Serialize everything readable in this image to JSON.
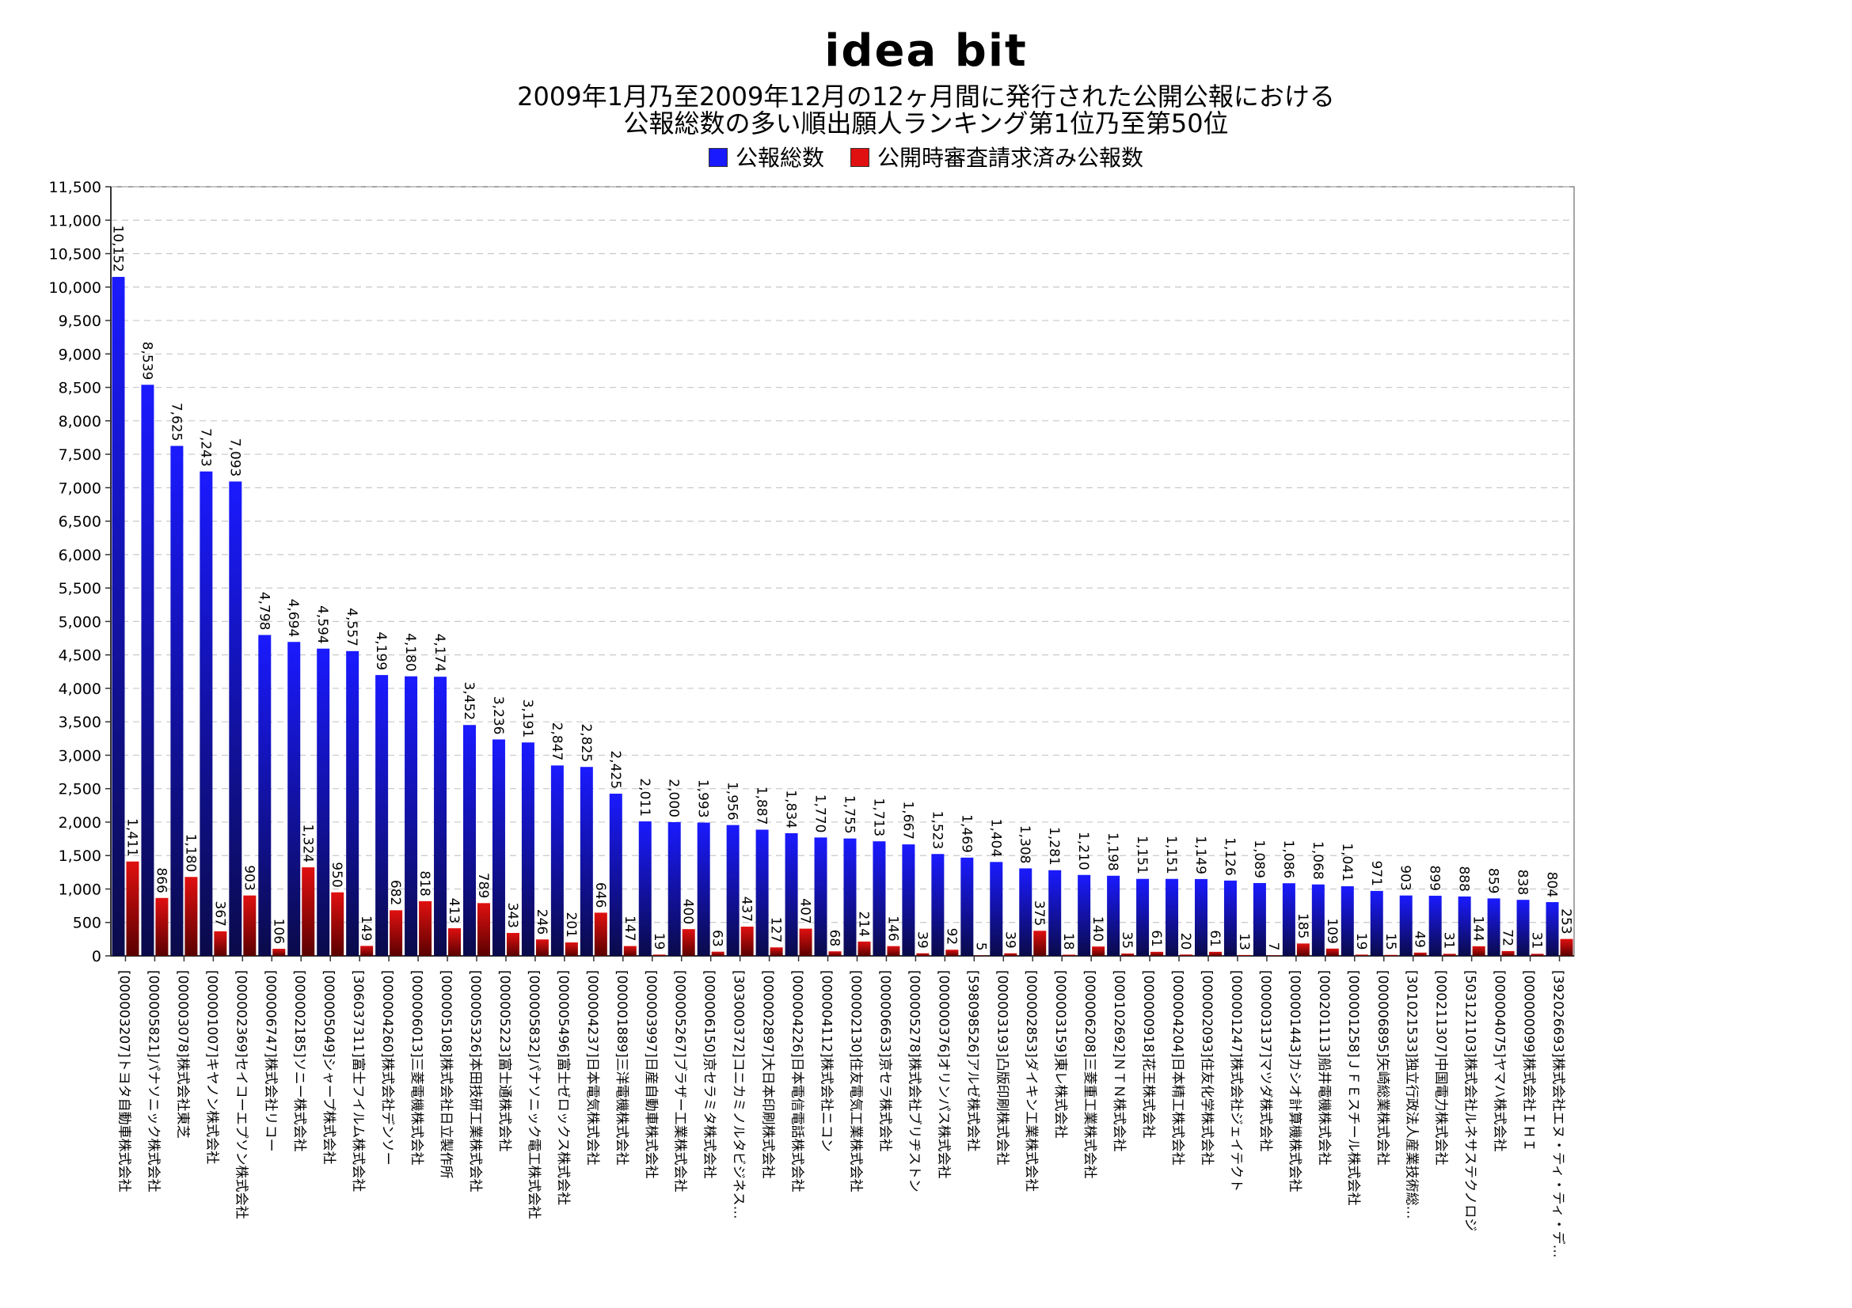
{
  "header": {
    "logo": "idea bit",
    "title_line1": "2009年1月乃至2009年12月の12ヶ月間に発行された公開公報における",
    "title_line2": "公報総数の多い順出願人ランキング第1位乃至第50位"
  },
  "colors": {
    "series1_top": "#1a1aff",
    "series1_bottom": "#0a0a4a",
    "series2_top": "#e01010",
    "series2_bottom": "#5a0000",
    "gridline": "#c8c8c8",
    "axis": "#333333"
  },
  "chart_data": {
    "type": "bar",
    "title": "2009年1月乃至2009年12月の12ヶ月間に発行された公開公報における 公報総数の多い順出願人ランキング第1位乃至第50位",
    "legend_position": "top",
    "grid": true,
    "ylim": [
      0,
      11500
    ],
    "y_ticks": [
      "0",
      "500",
      "1,000",
      "1,500",
      "2,000",
      "2,500",
      "3,000",
      "3,500",
      "4,000",
      "4,500",
      "5,000",
      "5,500",
      "6,000",
      "6,500",
      "7,000",
      "7,500",
      "8,000",
      "8,500",
      "9,000",
      "9,500",
      "10,000",
      "10,500",
      "11,000",
      "11,500"
    ],
    "categories": [
      "[000003207]トヨタ自動車株式会社",
      "[000005821]パナソニック株式会社",
      "[000003078]株式会社東芝",
      "[000001007]キヤノン株式会社",
      "[000002369]セイコーエプソン株式会社",
      "[000006747]株式会社リコー",
      "[000002185]ソニー株式会社",
      "[000005049]シャープ株式会社",
      "[306037311]富士フイルム株式会社",
      "[000004260]株式会社デンソー",
      "[000006013]三菱電機株式会社",
      "[000005108]株式会社日立製作所",
      "[000005326]本田技研工業株式会社",
      "[000005223]富士通株式会社",
      "[000005832]パナソニック電工株式会社",
      "[000005496]富士ゼロックス株式会社",
      "[000004237]日本電気株式会社",
      "[000001889]三洋電機株式会社",
      "[000003997]日産自動車株式会社",
      "[000005267]ブラザー工業株式会社",
      "[000006150]京セラミタ株式会社",
      "[303000372]コニカミノルタビジネス…",
      "[000002897]大日本印刷株式会社",
      "[000004226]日本電信電話株式会社",
      "[000004112]株式会社ニコン",
      "[000002130]住友電気工業株式会社",
      "[000006633]京セラ株式会社",
      "[000005278]株式会社ブリヂストン",
      "[000000376]オリンパス株式会社",
      "[598098526]アルゼ株式会社",
      "[000003193]凸版印刷株式会社",
      "[000002853]ダイキン工業株式会社",
      "[000003159]東レ株式会社",
      "[000006208]三菱重工業株式会社",
      "[000102692]ＮＴＮ株式会社",
      "[000000918]花王株式会社",
      "[000004204]日本精工株式会社",
      "[000002093]住友化学株式会社",
      "[000001247]株式会社ジェイテクト",
      "[000003137]マツダ株式会社",
      "[000001443]カシオ計算機株式会社",
      "[000201113]船井電機株式会社",
      "[000001258]ＪＦＥスチール株式会社",
      "[000006895]矢崎総業株式会社",
      "[301021533]独立行政法人産業技術総…",
      "[000211307]中国電力株式会社",
      "[503121103]株式会社ルネサステクノロジ",
      "[000004075]ヤマハ株式会社",
      "[000000099]株式会社ＩＨＩ",
      "[392026693]株式会社エヌ・ティ・ティ・デ…"
    ],
    "series": [
      {
        "name": "公報総数",
        "values": [
          10152,
          8539,
          7625,
          7243,
          7093,
          4798,
          4694,
          4594,
          4557,
          4199,
          4180,
          4174,
          3452,
          3236,
          3191,
          2847,
          2825,
          2425,
          2011,
          2000,
          1993,
          1956,
          1887,
          1834,
          1770,
          1755,
          1713,
          1667,
          1523,
          1469,
          1404,
          1308,
          1281,
          1210,
          1198,
          1151,
          1151,
          1149,
          1126,
          1089,
          1086,
          1068,
          1041,
          971,
          903,
          899,
          888,
          859,
          838,
          804
        ],
        "labels": [
          "10,152",
          "8,539",
          "7,625",
          "7,243",
          "7,093",
          "4,798",
          "4,694",
          "4,594",
          "4,557",
          "4,199",
          "4,180",
          "4,174",
          "3,452",
          "3,236",
          "3,191",
          "2,847",
          "2,825",
          "2,425",
          "2,011",
          "2,000",
          "1,993",
          "1,956",
          "1,887",
          "1,834",
          "1,770",
          "1,755",
          "1,713",
          "1,667",
          "1,523",
          "1,469",
          "1,404",
          "1,308",
          "1,281",
          "1,210",
          "1,198",
          "1,151",
          "1,151",
          "1,149",
          "1,126",
          "1,089",
          "1,086",
          "1,068",
          "1,041",
          "971",
          "903",
          "899",
          "888",
          "859",
          "838",
          "804"
        ]
      },
      {
        "name": "公開時審査請求済み公報数",
        "values": [
          1411,
          866,
          1180,
          367,
          903,
          106,
          1324,
          950,
          149,
          682,
          818,
          413,
          789,
          343,
          246,
          201,
          646,
          147,
          19,
          400,
          63,
          437,
          127,
          407,
          68,
          214,
          146,
          39,
          92,
          5,
          39,
          375,
          18,
          140,
          35,
          61,
          20,
          61,
          13,
          7,
          185,
          109,
          19,
          15,
          49,
          31,
          144,
          72,
          31,
          253
        ],
        "labels": [
          "1,411",
          "866",
          "1,180",
          "367",
          "903",
          "106",
          "1,324",
          "950",
          "149",
          "682",
          "818",
          "413",
          "789",
          "343",
          "246",
          "201",
          "646",
          "147",
          "19",
          "400",
          "63",
          "437",
          "127",
          "407",
          "68",
          "214",
          "146",
          "39",
          "92",
          "5",
          "39",
          "375",
          "18",
          "140",
          "35",
          "61",
          "20",
          "61",
          "13",
          "7",
          "185",
          "109",
          "19",
          "15",
          "49",
          "31",
          "144",
          "72",
          "31",
          "253"
        ]
      }
    ]
  }
}
